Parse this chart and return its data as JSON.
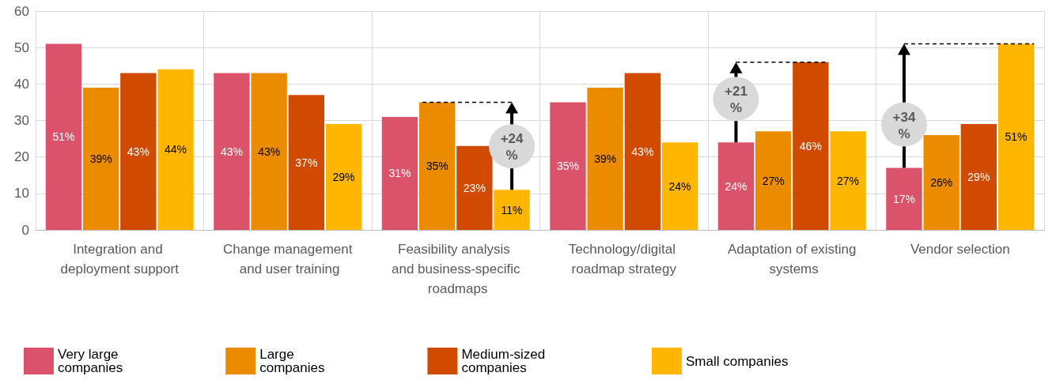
{
  "chart_data": {
    "type": "bar",
    "categories": [
      "Integration and deployment support",
      "Change management and user training",
      "Feasibility analysis and business-specific roadmaps",
      "Technology/digital roadmap strategy",
      "Adaptation of existing systems",
      "Vendor selection"
    ],
    "series": [
      {
        "name": "Very large companies",
        "color": "#db536a",
        "values": [
          51,
          43,
          31,
          35,
          24,
          17
        ],
        "value_labels": [
          "51%",
          "43%",
          "31%",
          "35%",
          "24%",
          "17%"
        ]
      },
      {
        "name": "Large companies",
        "color": "#eb8c00",
        "values": [
          39,
          43,
          35,
          39,
          27,
          26
        ],
        "value_labels": [
          "39%",
          "43%",
          "35%",
          "39%",
          "27%",
          "26%"
        ]
      },
      {
        "name": "Medium-sized companies",
        "color": "#d04a02",
        "values": [
          43,
          37,
          23,
          43,
          46,
          29
        ],
        "value_labels": [
          "43%",
          "37%",
          "23%",
          "43%",
          "46%",
          "29%"
        ]
      },
      {
        "name": "Small companies",
        "color": "#ffb600",
        "values": [
          44,
          29,
          11,
          24,
          27,
          51
        ],
        "value_labels": [
          "44%",
          "29%",
          "11%",
          "24%",
          "27%",
          "51%"
        ]
      }
    ],
    "ylim": [
      0,
      60
    ],
    "yticks": [
      0,
      10,
      20,
      30,
      40,
      50,
      60
    ],
    "grid": true,
    "legend": "bottom",
    "annotations": [
      {
        "text": "+24 %",
        "y": 11
      },
      {
        "text": "+21 %",
        "y": 24
      },
      {
        "text": "+34 %",
        "y": 17
      }
    ]
  }
}
